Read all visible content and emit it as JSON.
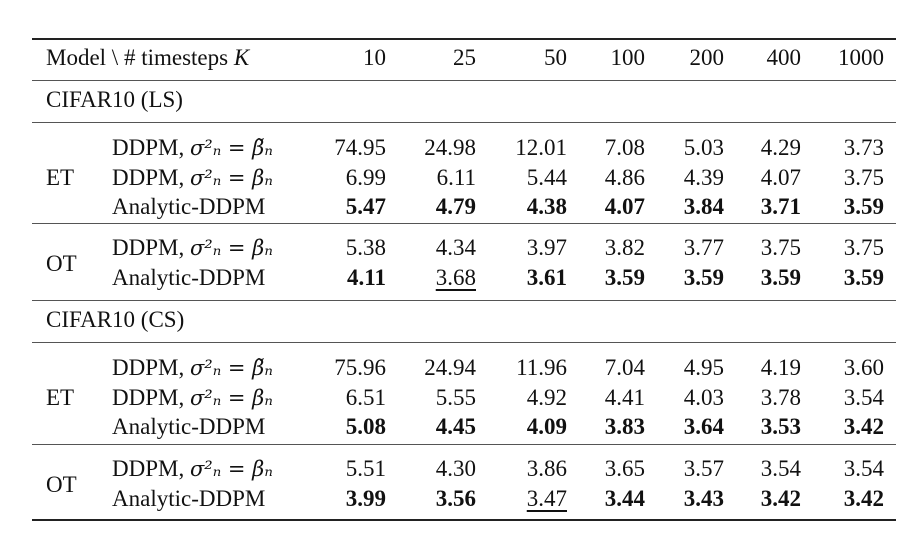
{
  "header": {
    "model_col": "Model \\ # timesteps",
    "k_symbol": "K",
    "columns": [
      "10",
      "25",
      "50",
      "100",
      "200",
      "400",
      "1000"
    ]
  },
  "sections": [
    {
      "title": "CIFAR10 (LS)",
      "groups": [
        {
          "label": "ET",
          "rows": [
            {
              "model_prefix": "DDPM, ",
              "model_math": "σ²ₙ = β̃ₙ",
              "values": [
                "74.95",
                "24.98",
                "12.01",
                "7.08",
                "5.03",
                "4.29",
                "3.73"
              ],
              "bold": [
                false,
                false,
                false,
                false,
                false,
                false,
                false
              ],
              "underline": [
                false,
                false,
                false,
                false,
                false,
                false,
                false
              ]
            },
            {
              "model_prefix": "DDPM, ",
              "model_math": "σ²ₙ = βₙ",
              "values": [
                "6.99",
                "6.11",
                "5.44",
                "4.86",
                "4.39",
                "4.07",
                "3.75"
              ],
              "bold": [
                false,
                false,
                false,
                false,
                false,
                false,
                false
              ],
              "underline": [
                false,
                false,
                false,
                false,
                false,
                false,
                false
              ]
            },
            {
              "model_prefix": "Analytic-DDPM",
              "model_math": "",
              "values": [
                "5.47",
                "4.79",
                "4.38",
                "4.07",
                "3.84",
                "3.71",
                "3.59"
              ],
              "bold": [
                true,
                true,
                true,
                true,
                true,
                true,
                true
              ],
              "underline": [
                false,
                false,
                false,
                false,
                false,
                false,
                false
              ]
            }
          ]
        },
        {
          "label": "OT",
          "rows": [
            {
              "model_prefix": "DDPM, ",
              "model_math": "σ²ₙ = βₙ",
              "values": [
                "5.38",
                "4.34",
                "3.97",
                "3.82",
                "3.77",
                "3.75",
                "3.75"
              ],
              "bold": [
                false,
                false,
                false,
                false,
                false,
                false,
                false
              ],
              "underline": [
                false,
                false,
                false,
                false,
                false,
                false,
                false
              ]
            },
            {
              "model_prefix": "Analytic-DDPM",
              "model_math": "",
              "values": [
                "4.11",
                "3.68",
                "3.61",
                "3.59",
                "3.59",
                "3.59",
                "3.59"
              ],
              "bold": [
                true,
                false,
                true,
                true,
                true,
                true,
                true
              ],
              "underline": [
                false,
                true,
                false,
                false,
                false,
                false,
                false
              ]
            }
          ]
        }
      ]
    },
    {
      "title": "CIFAR10 (CS)",
      "groups": [
        {
          "label": "ET",
          "rows": [
            {
              "model_prefix": "DDPM, ",
              "model_math": "σ²ₙ = β̃ₙ",
              "values": [
                "75.96",
                "24.94",
                "11.96",
                "7.04",
                "4.95",
                "4.19",
                "3.60"
              ],
              "bold": [
                false,
                false,
                false,
                false,
                false,
                false,
                false
              ],
              "underline": [
                false,
                false,
                false,
                false,
                false,
                false,
                false
              ]
            },
            {
              "model_prefix": "DDPM, ",
              "model_math": "σ²ₙ = βₙ",
              "values": [
                "6.51",
                "5.55",
                "4.92",
                "4.41",
                "4.03",
                "3.78",
                "3.54"
              ],
              "bold": [
                false,
                false,
                false,
                false,
                false,
                false,
                false
              ],
              "underline": [
                false,
                false,
                false,
                false,
                false,
                false,
                false
              ]
            },
            {
              "model_prefix": "Analytic-DDPM",
              "model_math": "",
              "values": [
                "5.08",
                "4.45",
                "4.09",
                "3.83",
                "3.64",
                "3.53",
                "3.42"
              ],
              "bold": [
                true,
                true,
                true,
                true,
                true,
                true,
                true
              ],
              "underline": [
                false,
                false,
                false,
                false,
                false,
                false,
                false
              ]
            }
          ]
        },
        {
          "label": "OT",
          "rows": [
            {
              "model_prefix": "DDPM, ",
              "model_math": "σ²ₙ = βₙ",
              "values": [
                "5.51",
                "4.30",
                "3.86",
                "3.65",
                "3.57",
                "3.54",
                "3.54"
              ],
              "bold": [
                false,
                false,
                false,
                false,
                false,
                false,
                false
              ],
              "underline": [
                false,
                false,
                false,
                false,
                false,
                false,
                false
              ]
            },
            {
              "model_prefix": "Analytic-DDPM",
              "model_math": "",
              "values": [
                "3.99",
                "3.56",
                "3.47",
                "3.44",
                "3.43",
                "3.42",
                "3.42"
              ],
              "bold": [
                true,
                true,
                false,
                true,
                true,
                true,
                true
              ],
              "underline": [
                false,
                false,
                true,
                false,
                false,
                false,
                false
              ]
            }
          ]
        }
      ]
    }
  ]
}
